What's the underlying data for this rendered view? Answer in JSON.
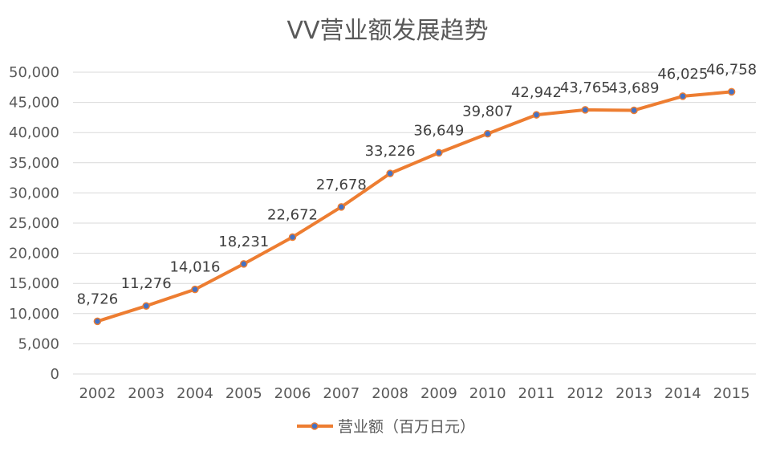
{
  "chart_data": {
    "type": "line",
    "title": "VV营业额发展趋势",
    "xlabel": "",
    "ylabel": "",
    "categories": [
      "2002",
      "2003",
      "2004",
      "2005",
      "2006",
      "2007",
      "2008",
      "2009",
      "2010",
      "2011",
      "2012",
      "2013",
      "2014",
      "2015"
    ],
    "series": [
      {
        "name": "营业额（百万日元）",
        "values": [
          8726,
          11276,
          14016,
          18231,
          22672,
          27678,
          33226,
          36649,
          39807,
          42942,
          43765,
          43689,
          46025,
          46758
        ],
        "labels": [
          "8,726",
          "11,276",
          "14,016",
          "18,231",
          "22,672",
          "27,678",
          "33,226",
          "36,649",
          "39,807",
          "42,942",
          "43,765",
          "43,689",
          "46,025",
          "46,758"
        ]
      }
    ],
    "ylim": [
      0,
      50000
    ],
    "yticks": [
      "0",
      "5,000",
      "10,000",
      "15,000",
      "20,000",
      "25,000",
      "30,000",
      "35,000",
      "40,000",
      "45,000",
      "50,000"
    ],
    "grid": true,
    "legend_position": "bottom",
    "colors": {
      "line": "#ED7D31",
      "marker_fill": "#4472C4",
      "grid": "#D9D9D9",
      "text": "#595959"
    }
  }
}
